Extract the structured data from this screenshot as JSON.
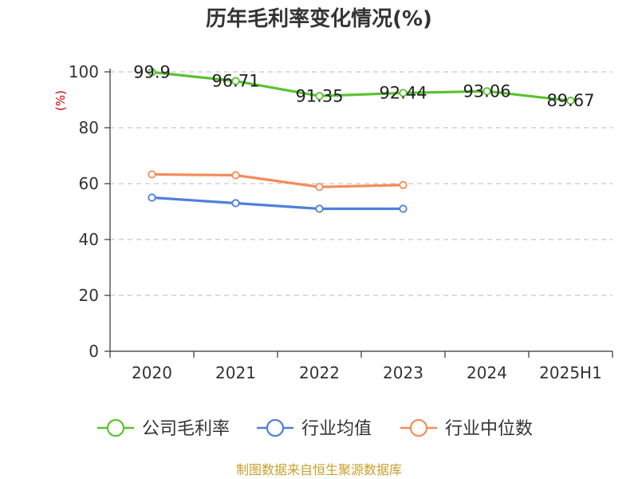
{
  "chart_data": {
    "type": "line",
    "title": "历年毛利率变化情况(%)",
    "unit_label": "(%)",
    "categories": [
      "2020",
      "2021",
      "2022",
      "2023",
      "2024",
      "2025H1"
    ],
    "ylim": [
      0,
      100
    ],
    "yticks": [
      "0",
      "20",
      "40",
      "60",
      "80",
      "100"
    ],
    "grid": true,
    "legend_position": "bottom",
    "series": [
      {
        "name": "公司毛利率",
        "color": "#5bc232",
        "values": [
          99.9,
          96.71,
          91.35,
          92.44,
          93.06,
          89.67
        ],
        "labels": [
          "99.9",
          "96.71",
          "91.35",
          "92.44",
          "93.06",
          "89.67"
        ]
      },
      {
        "name": "行业均值",
        "color": "#4f7fdb",
        "values": [
          55.0,
          53.0,
          51.0,
          51.0,
          null,
          null
        ]
      },
      {
        "name": "行业中位数",
        "color": "#f28c5a",
        "values": [
          63.3,
          63.0,
          58.8,
          59.5,
          null,
          null
        ]
      }
    ],
    "source": "制图数据来自恒生聚源数据库"
  }
}
